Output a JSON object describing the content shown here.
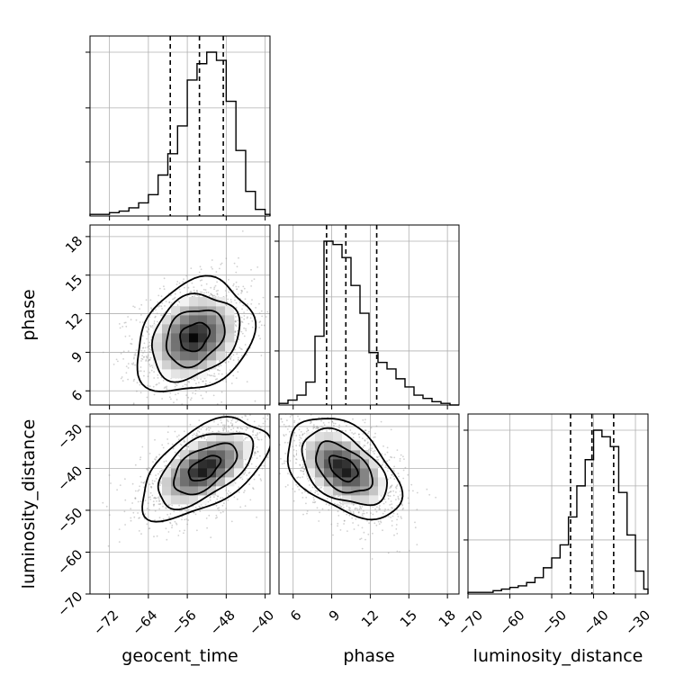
{
  "chart_data": {
    "type": "corner",
    "parameters": [
      "geocent_time",
      "phase",
      "luminosity_distance"
    ],
    "axis_labels": {
      "geocent_time": "geocent_time",
      "phase": "phase",
      "luminosity_distance": "luminosity_distance"
    },
    "ranges": {
      "geocent_time": [
        -76,
        -39
      ],
      "phase": [
        4.9,
        18.9
      ],
      "luminosity_distance": [
        -70,
        -27
      ]
    },
    "ticks": {
      "geocent_time": [
        -72,
        -64,
        -56,
        -48,
        -40
      ],
      "phase": [
        6,
        9,
        12,
        15,
        18
      ],
      "luminosity_distance": [
        -70,
        -60,
        -50,
        -40,
        -30
      ]
    },
    "tick_labels": {
      "geocent_time": [
        "−72",
        "−64",
        "−56",
        "−48",
        "−40"
      ],
      "phase": [
        "6",
        "9",
        "12",
        "15",
        "18"
      ],
      "luminosity_distance": [
        "−70",
        "−60",
        "−50",
        "−40",
        "−30"
      ]
    },
    "quantiles": {
      "geocent_time": [
        -59.5,
        -53.5,
        -48.6
      ],
      "phase": [
        8.6,
        10.1,
        12.5
      ],
      "luminosity_distance": [
        -45.5,
        -40.4,
        -35.2
      ]
    },
    "histograms": {
      "geocent_time": {
        "edges": [
          -76,
          -74,
          -72,
          -70,
          -68,
          -66,
          -64,
          -62,
          -60,
          -58,
          -56,
          -54,
          -52,
          -50,
          -48,
          -46,
          -44,
          -42,
          -40,
          -39
        ],
        "counts": [
          1,
          1,
          2,
          3,
          5,
          8,
          13,
          25,
          38,
          55,
          83,
          93,
          100,
          95,
          70,
          40,
          15,
          4,
          1
        ]
      },
      "phase": {
        "edges": [
          4.9,
          5.6,
          6.3,
          7.0,
          7.7,
          8.4,
          9.1,
          9.8,
          10.5,
          11.2,
          11.9,
          12.6,
          13.3,
          14.0,
          14.7,
          15.4,
          16.1,
          16.8,
          17.5,
          18.2,
          18.9
        ],
        "counts": [
          1,
          3,
          6,
          14,
          42,
          100,
          98,
          90,
          73,
          56,
          32,
          26,
          22,
          16,
          11,
          6,
          4,
          2,
          1,
          0
        ]
      },
      "luminosity_distance": {
        "edges": [
          -70,
          -68,
          -66,
          -64,
          -62,
          -60,
          -58,
          -56,
          -54,
          -52,
          -50,
          -48,
          -46,
          -44,
          -42,
          -40,
          -38,
          -36,
          -34,
          -32,
          -30,
          -28,
          -27
        ],
        "counts": [
          1,
          1,
          1,
          2,
          3,
          4,
          5,
          7,
          10,
          16,
          22,
          30,
          47,
          66,
          82,
          100,
          96,
          90,
          62,
          36,
          14,
          3
        ]
      }
    },
    "pairs": [
      {
        "x": "geocent_time",
        "y": "phase",
        "center": [
          -54.5,
          10.2
        ],
        "spread": [
          6.0,
          2.2
        ],
        "correlation": 0.25,
        "contour_levels": [
          0.5,
          1.0,
          1.5,
          2.0
        ]
      },
      {
        "x": "geocent_time",
        "y": "luminosity_distance",
        "center": [
          -52.5,
          -40.0
        ],
        "spread": [
          6.5,
          6.0
        ],
        "correlation": 0.55,
        "contour_levels": [
          0.5,
          1.0,
          1.5,
          2.0
        ]
      },
      {
        "x": "phase",
        "y": "luminosity_distance",
        "center": [
          9.9,
          -40.0
        ],
        "spread": [
          2.2,
          6.0
        ],
        "correlation": -0.45,
        "contour_levels": [
          0.5,
          1.0,
          1.5,
          2.0
        ]
      }
    ],
    "grid": true,
    "colors": {
      "line": "#000000",
      "grid": "#b0b0b0",
      "points": "#9a9a9a",
      "quantile": "#000000"
    }
  }
}
